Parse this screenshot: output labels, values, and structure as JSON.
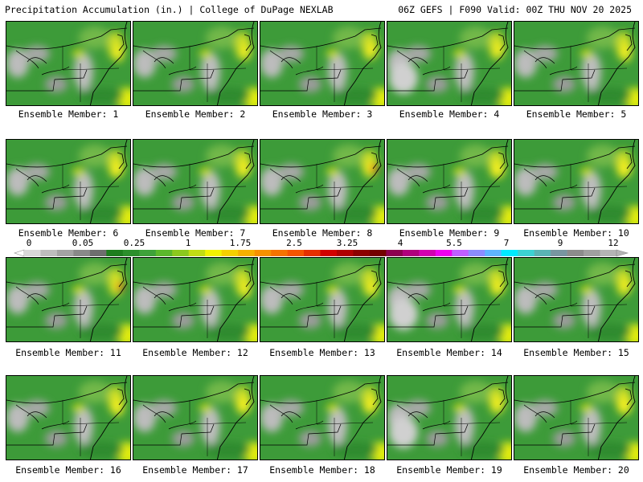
{
  "header": {
    "left": "Precipitation Accumulation (in.) | College of DuPage NEXLAB",
    "right": "06Z GEFS | F090 Valid: 00Z THU NOV 20 2025"
  },
  "member_prefix": "Ensemble Member: ",
  "members": [
    1,
    2,
    3,
    4,
    5,
    6,
    7,
    8,
    9,
    10,
    11,
    12,
    13,
    14,
    15,
    16,
    17,
    18,
    19,
    20
  ],
  "colorbar": {
    "tick_labels": [
      "0",
      "0.05",
      "0.25",
      "1",
      "1.75",
      "2.5",
      "3.25",
      "4",
      "5.5",
      "7",
      "9",
      "12"
    ],
    "colors": [
      "#d8d8d8",
      "#bdbdbd",
      "#a3a3a3",
      "#898989",
      "#6e6e6e",
      "#1e7e1e",
      "#2c8f2c",
      "#3ea23a",
      "#5bb82c",
      "#8cc81e",
      "#c2dc14",
      "#f2f200",
      "#f5d000",
      "#f5b000",
      "#f59100",
      "#f57300",
      "#f55500",
      "#e63000",
      "#d20000",
      "#b00000",
      "#8c0000",
      "#730000",
      "#8c0050",
      "#b0007d",
      "#d200b0",
      "#ee00ee",
      "#bf5fff",
      "#8c8cff",
      "#5fb4ff",
      "#00eaff",
      "#3cd2d2",
      "#5ab4b4",
      "#7896a0",
      "#8c8c8c",
      "#a0a0a0",
      "#b4b4b4"
    ]
  }
}
